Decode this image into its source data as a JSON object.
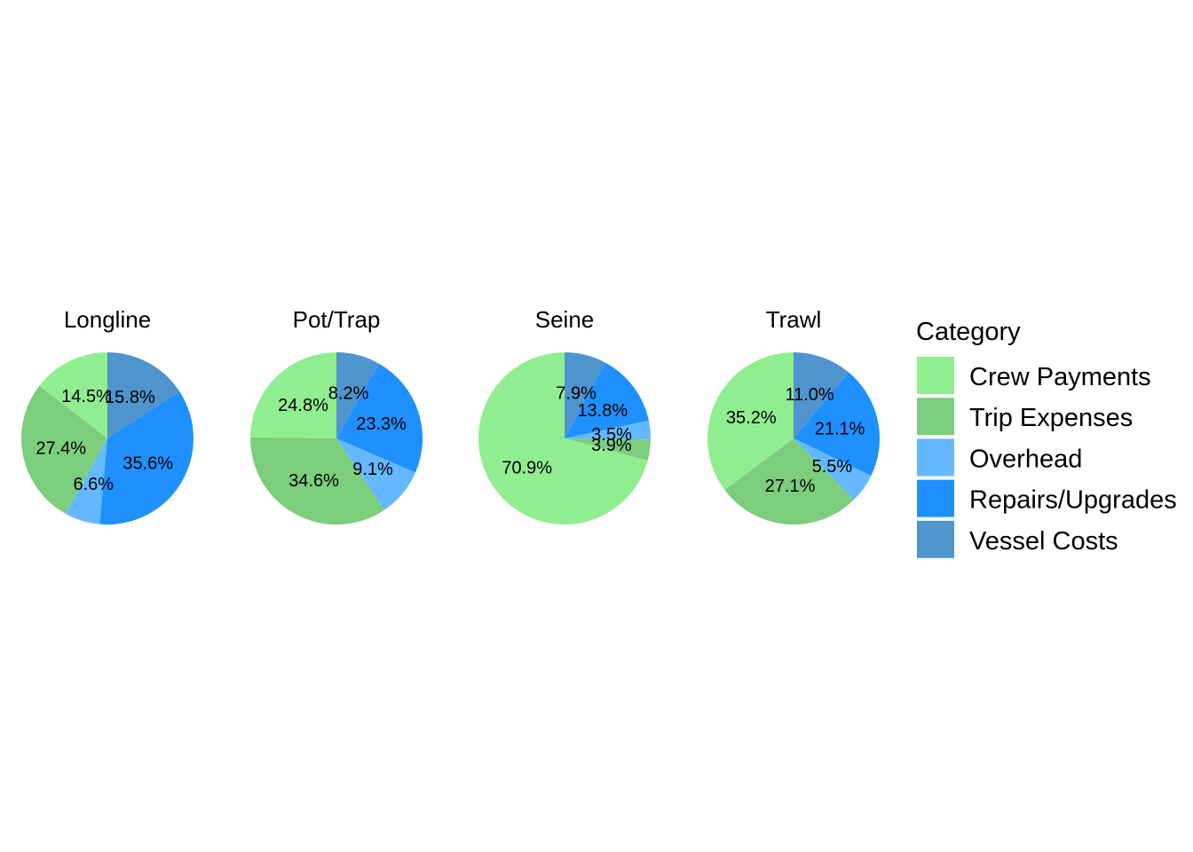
{
  "chart_data": {
    "type": "pie",
    "legend": {
      "title": "Category",
      "placement": "right"
    },
    "categories": [
      "Crew Payments",
      "Trip Expenses",
      "Overhead",
      "Repairs/Upgrades",
      "Vessel Costs"
    ],
    "colors": {
      "Crew Payments": "#90ee90",
      "Trip Expenses": "#7ccd7c",
      "Overhead": "#63b8ff",
      "Repairs/Upgrades": "#1e90ff",
      "Vessel Costs": "#4f94cd"
    },
    "facets": [
      {
        "title": "Longline",
        "slices": [
          {
            "category": "Vessel Costs",
            "value": 15.8,
            "label": "15.8%"
          },
          {
            "category": "Repairs/Upgrades",
            "value": 35.6,
            "label": "35.6%"
          },
          {
            "category": "Overhead",
            "value": 6.6,
            "label": "6.6%"
          },
          {
            "category": "Trip Expenses",
            "value": 27.4,
            "label": "27.4%"
          },
          {
            "category": "Crew Payments",
            "value": 14.5,
            "label": "14.5%"
          }
        ]
      },
      {
        "title": "Pot/Trap",
        "slices": [
          {
            "category": "Vessel Costs",
            "value": 8.2,
            "label": "8.2%"
          },
          {
            "category": "Repairs/Upgrades",
            "value": 23.3,
            "label": "23.3%"
          },
          {
            "category": "Overhead",
            "value": 9.1,
            "label": "9.1%"
          },
          {
            "category": "Trip Expenses",
            "value": 34.6,
            "label": "34.6%"
          },
          {
            "category": "Crew Payments",
            "value": 24.8,
            "label": "24.8%"
          }
        ]
      },
      {
        "title": "Seine",
        "slices": [
          {
            "category": "Vessel Costs",
            "value": 7.9,
            "label": "7.9%"
          },
          {
            "category": "Repairs/Upgrades",
            "value": 13.8,
            "label": "13.8%"
          },
          {
            "category": "Overhead",
            "value": 3.5,
            "label": "3.5%"
          },
          {
            "category": "Trip Expenses",
            "value": 3.9,
            "label": "3.9%"
          },
          {
            "category": "Crew Payments",
            "value": 70.9,
            "label": "70.9%"
          }
        ]
      },
      {
        "title": "Trawl",
        "slices": [
          {
            "category": "Vessel Costs",
            "value": 11.0,
            "label": "11.0%"
          },
          {
            "category": "Repairs/Upgrades",
            "value": 21.1,
            "label": "21.1%"
          },
          {
            "category": "Overhead",
            "value": 5.5,
            "label": "5.5%"
          },
          {
            "category": "Trip Expenses",
            "value": 27.1,
            "label": "27.1%"
          },
          {
            "category": "Crew Payments",
            "value": 35.2,
            "label": "35.2%"
          }
        ]
      }
    ]
  }
}
